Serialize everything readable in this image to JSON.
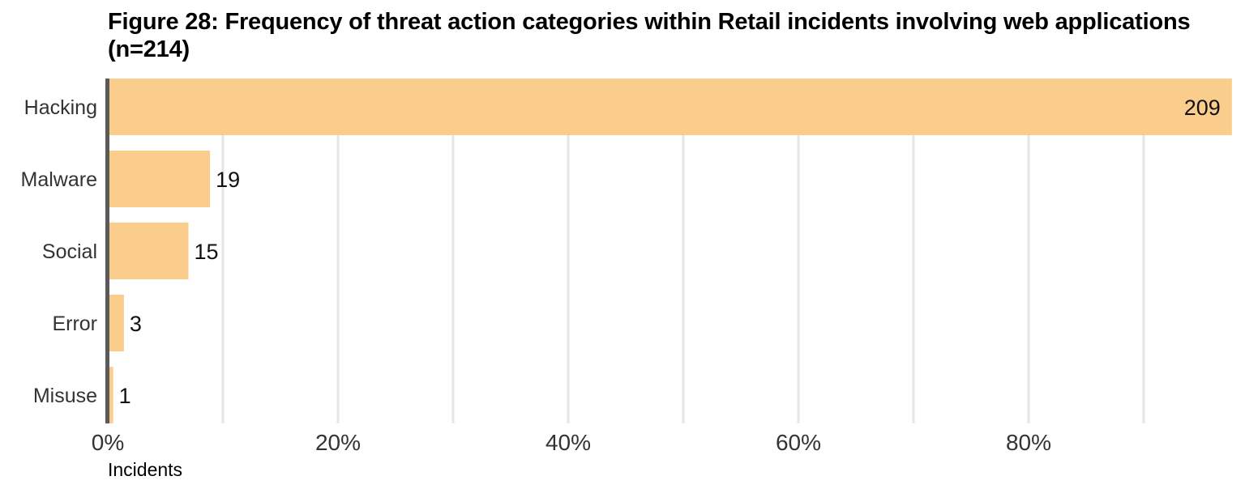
{
  "chart_data": {
    "type": "bar",
    "orientation": "horizontal",
    "title": "Figure 28: Frequency of threat action categories within Retail incidents involving web applications (n=214)",
    "xlabel": "Incidents",
    "ylabel": "",
    "n": 214,
    "categories": [
      "Hacking",
      "Malware",
      "Social",
      "Error",
      "Misuse"
    ],
    "values": [
      209,
      19,
      15,
      3,
      1
    ],
    "x_ticks": [
      "0%",
      "20%",
      "40%",
      "60%",
      "80%"
    ],
    "xlim": [
      0,
      0.977
    ],
    "grid": true,
    "colors": {
      "bar": "#fbcd8c",
      "grid": "#e6e6e6",
      "baseline": "#5a5a5a"
    }
  }
}
